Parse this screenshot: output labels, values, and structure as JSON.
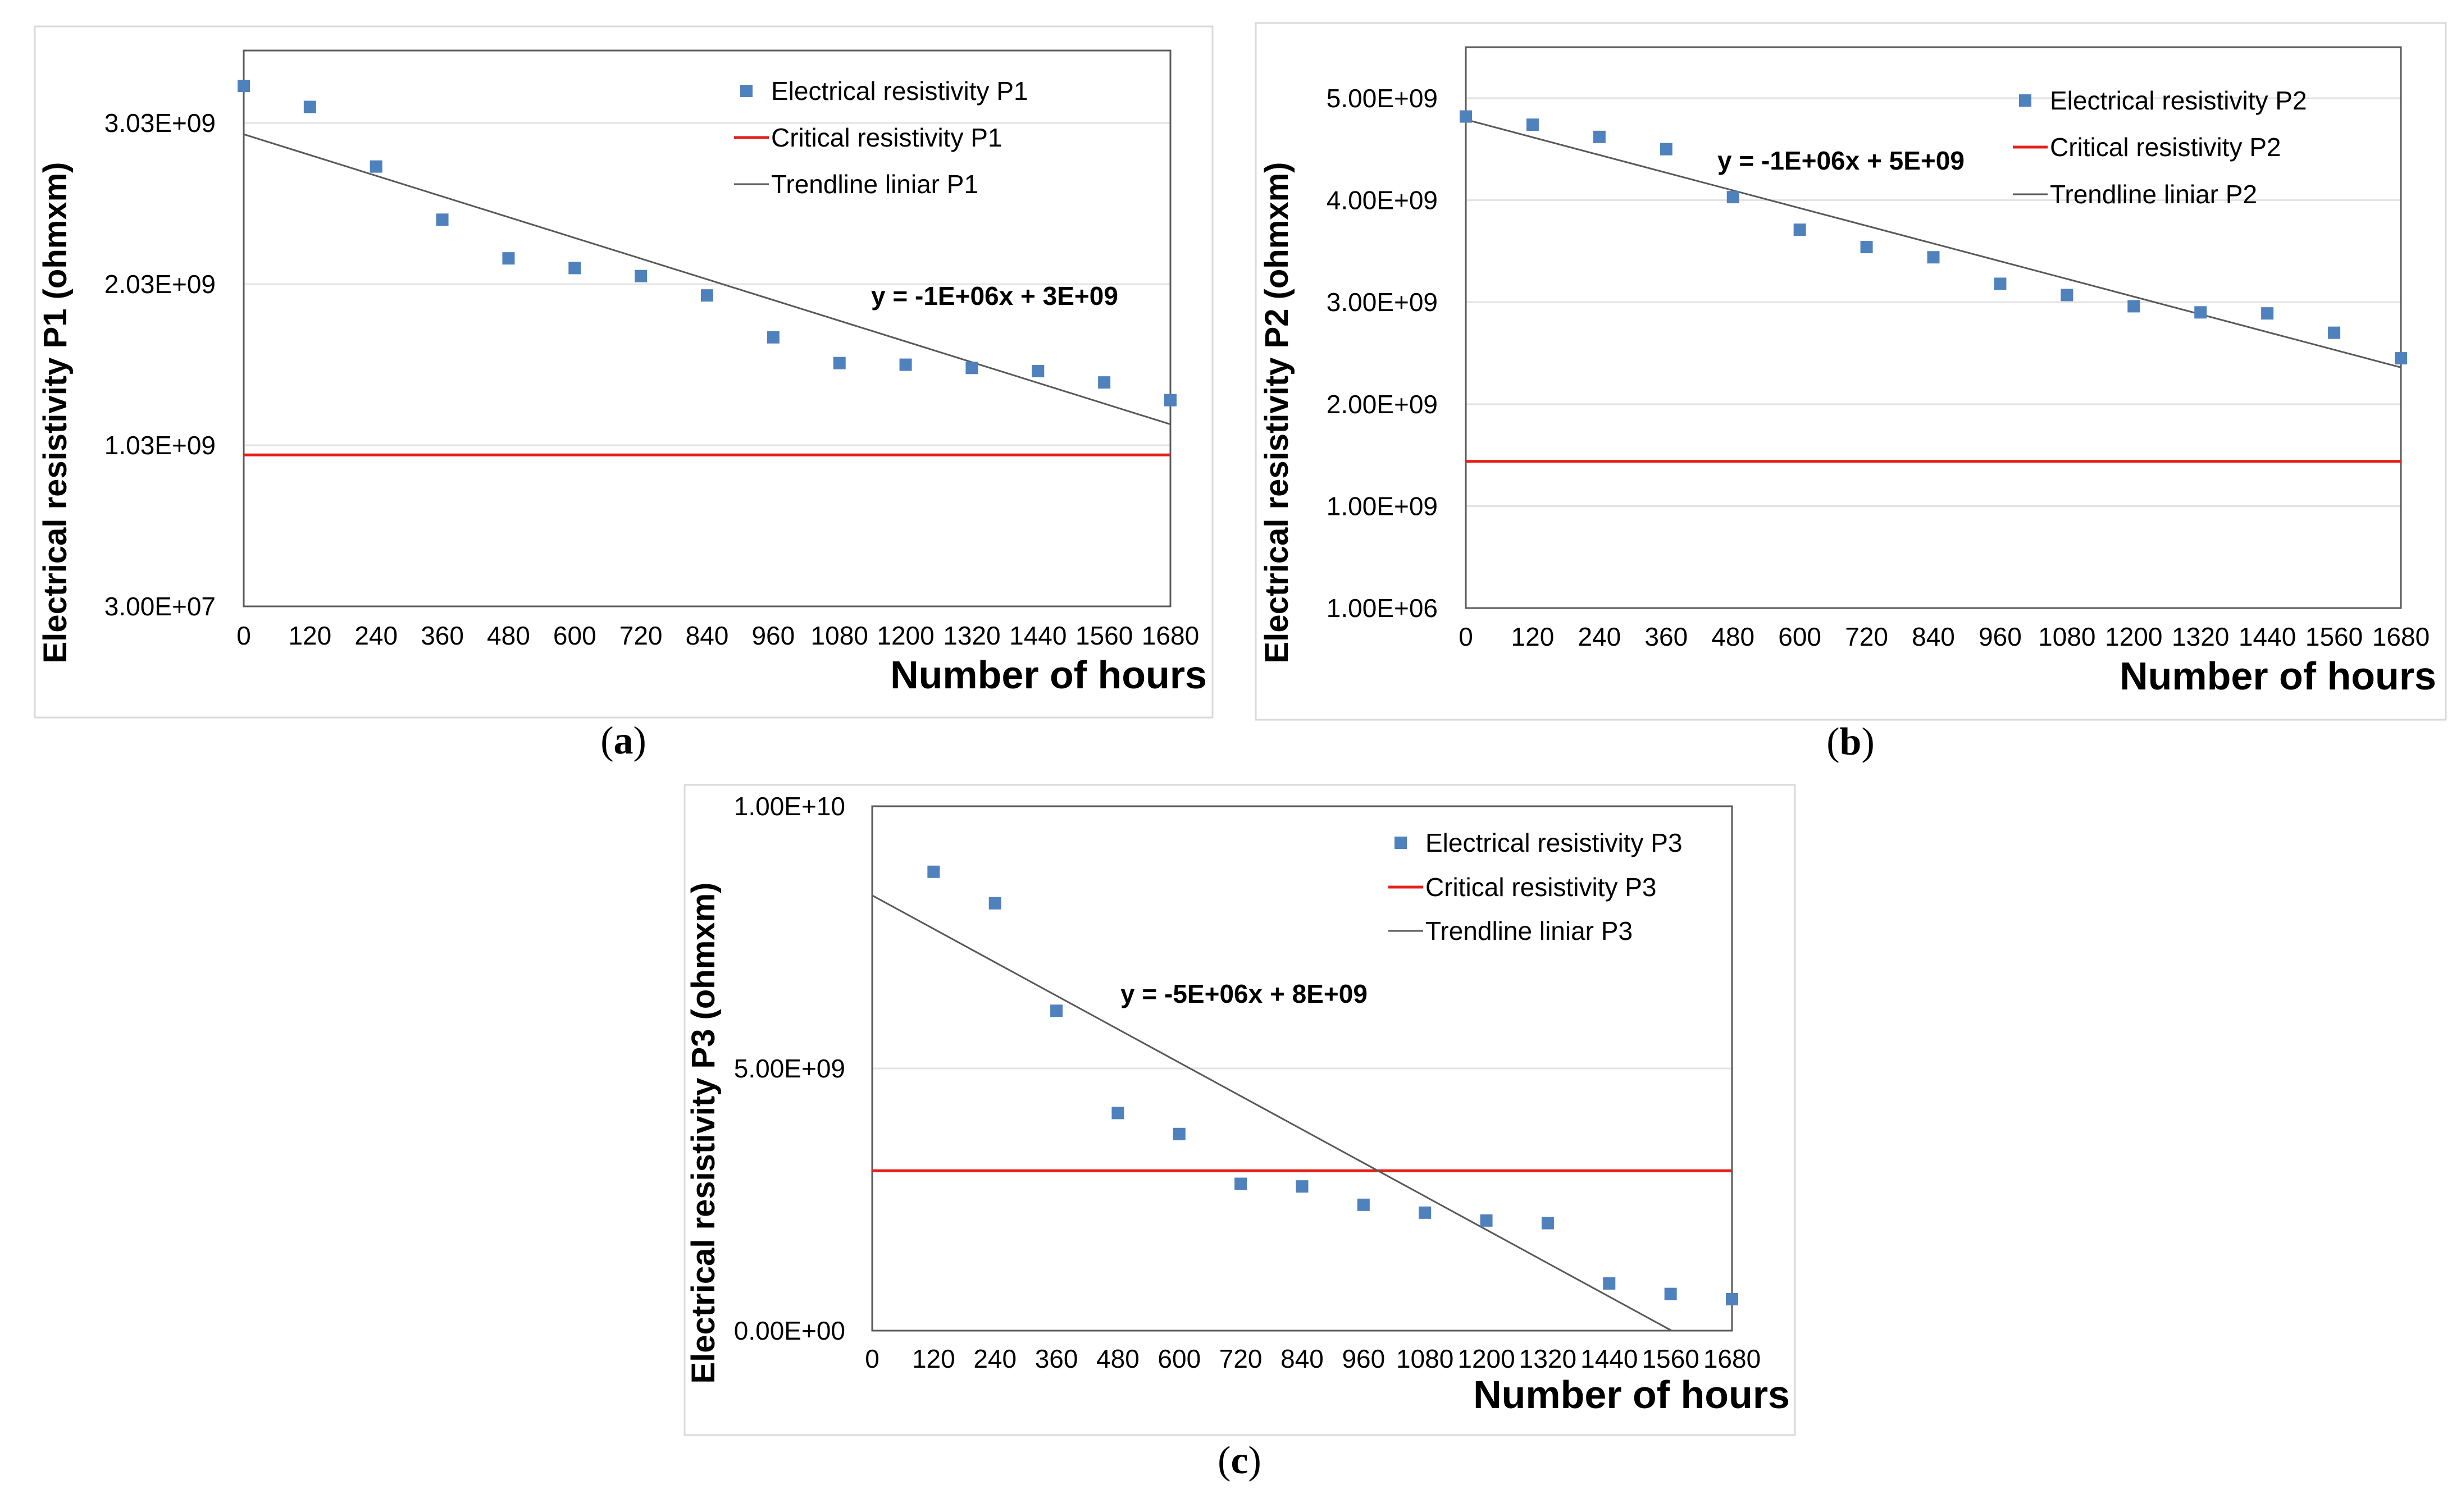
{
  "colors": {
    "points": "#4f81bd",
    "critical": "#e32119",
    "trend": "#595959",
    "grid": "#e3e3e3"
  },
  "chart_data": [
    {
      "id": "a",
      "type": "scatter",
      "caption_label": "a",
      "xlabel": "Number of hours",
      "ylabel": "Electrical resistivity P1 (ohmxm)",
      "x_ticks": [
        "0",
        "120",
        "240",
        "360",
        "480",
        "600",
        "720",
        "840",
        "960",
        "1080",
        "1200",
        "1320",
        "1440",
        "1560",
        "1680"
      ],
      "y_ticks": [
        "3.00E+07",
        "1.03E+09",
        "2.03E+09",
        "3.03E+09"
      ],
      "xlim": [
        0,
        1680
      ],
      "ylim": [
        30000000,
        3480000000
      ],
      "grid": true,
      "legend": [
        "Electrical resistivity P1",
        "Critical resistivity P1",
        "Trendline liniar P1"
      ],
      "legend_position": "top-right",
      "series": [
        {
          "name": "Electrical resistivity P1",
          "x": [
            0,
            120,
            240,
            360,
            480,
            600,
            720,
            840,
            960,
            1080,
            1200,
            1320,
            1440,
            1560,
            1680
          ],
          "y": [
            3260000000,
            3130000000,
            2760000000,
            2430000000,
            2190000000,
            2130000000,
            2080000000,
            1960000000,
            1700000000,
            1540000000,
            1530000000,
            1510000000,
            1490000000,
            1420000000,
            1310000000
          ]
        },
        {
          "name": "Critical resistivity P1",
          "kind": "hline",
          "y": 970000000
        },
        {
          "name": "Trendline liniar P1",
          "kind": "line",
          "x": [
            0,
            1680
          ],
          "y": [
            2960000000,
            1160000000
          ]
        }
      ],
      "equation": "y = -1E+06x + 3E+09"
    },
    {
      "id": "b",
      "type": "scatter",
      "caption_label": "b",
      "xlabel": "Number of hours",
      "ylabel": "Electrical resistivity P2 (ohmxm)",
      "x_ticks": [
        "0",
        "120",
        "240",
        "360",
        "480",
        "600",
        "720",
        "840",
        "960",
        "1080",
        "1200",
        "1320",
        "1440",
        "1560",
        "1680"
      ],
      "y_ticks": [
        "1.00E+06",
        "1.00E+09",
        "2.00E+09",
        "3.00E+09",
        "4.00E+09",
        "5.00E+09"
      ],
      "xlim": [
        0,
        1680
      ],
      "ylim": [
        1000000,
        5500000000
      ],
      "grid": true,
      "legend": [
        "Electrical resistivity P2",
        "Critical resistivity P2",
        "Trendline liniar P2"
      ],
      "legend_position": "top-right",
      "series": [
        {
          "name": "Electrical resistivity P2",
          "x": [
            0,
            120,
            240,
            360,
            480,
            600,
            720,
            840,
            960,
            1080,
            1200,
            1320,
            1440,
            1560,
            1680
          ],
          "y": [
            4820000000,
            4740000000,
            4620000000,
            4500000000,
            4030000000,
            3710000000,
            3540000000,
            3440000000,
            3180000000,
            3070000000,
            2960000000,
            2900000000,
            2890000000,
            2700000000,
            2450000000
          ]
        },
        {
          "name": "Critical resistivity P2",
          "kind": "hline",
          "y": 1440000000
        },
        {
          "name": "Trendline liniar P2",
          "kind": "line",
          "x": [
            0,
            1680
          ],
          "y": [
            4790000000,
            2360000000
          ]
        }
      ],
      "equation": "y = -1E+06x + 5E+09"
    },
    {
      "id": "c",
      "type": "scatter",
      "caption_label": "c",
      "xlabel": "Number of hours",
      "ylabel": "Electrical resistivity P3 (ohmxm)",
      "x_ticks": [
        "0",
        "120",
        "240",
        "360",
        "480",
        "600",
        "720",
        "840",
        "960",
        "1080",
        "1200",
        "1320",
        "1440",
        "1560",
        "1680"
      ],
      "y_ticks": [
        "0.00E+00",
        "5.00E+09",
        "1.00E+10"
      ],
      "xlim": [
        0,
        1680
      ],
      "ylim": [
        0,
        10000000000
      ],
      "grid": true,
      "legend": [
        "Electrical resistivity P3",
        "Critical resistivity P3",
        "Trendline liniar P3"
      ],
      "legend_position": "top-right",
      "series": [
        {
          "name": "Electrical resistivity P3",
          "x": [
            120,
            240,
            360,
            480,
            600,
            720,
            840,
            960,
            1080,
            1200,
            1320,
            1440,
            1560,
            1680
          ],
          "y": [
            8750000000,
            8150000000,
            6100000000,
            4150000000,
            3750000000,
            2800000000,
            2750000000,
            2400000000,
            2250000000,
            2100000000,
            2050000000,
            900000000,
            700000000,
            600000000
          ]
        },
        {
          "name": "Critical resistivity P3",
          "kind": "hline",
          "y": 3050000000
        },
        {
          "name": "Trendline liniar P3",
          "kind": "line",
          "x": [
            0,
            1562
          ],
          "y": [
            8300000000,
            0
          ]
        }
      ],
      "equation": "y = -5E+06x + 8E+09"
    }
  ]
}
